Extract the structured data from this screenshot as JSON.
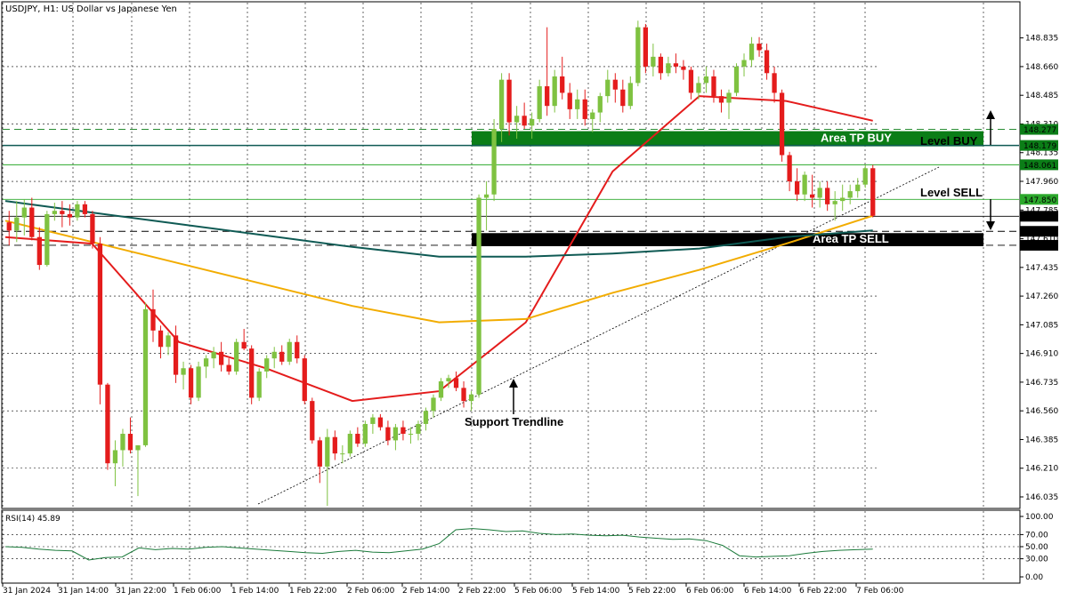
{
  "chart_data": {
    "type": "candlestick",
    "title": "USDJPY, H1:  US Dollar vs Japanese Yen",
    "y_ticks": [
      "148.835",
      "148.660",
      "148.485",
      "148.310",
      "148.135",
      "147.960",
      "147.785",
      "147.610",
      "147.435",
      "147.260",
      "147.085",
      "146.910",
      "146.735",
      "146.560",
      "146.385",
      "146.210",
      "146.035"
    ],
    "ylim": [
      145.97,
      149.05
    ],
    "x_ticks": [
      "31 Jan 2024",
      "31 Jan 14:00",
      "31 Jan 22:00",
      "1 Feb 06:00",
      "1 Feb 14:00",
      "1 Feb 22:00",
      "2 Feb 06:00",
      "2 Feb 14:00",
      "2 Feb 22:00",
      "5 Feb 06:00",
      "5 Feb 14:00",
      "5 Feb 22:00",
      "6 Feb 06:00",
      "6 Feb 14:00",
      "6 Feb 22:00",
      "7 Feb 06:00"
    ],
    "price_labels": [
      {
        "text": "148.277",
        "value": 148.277,
        "color": "#0b7d17"
      },
      {
        "text": "148.179",
        "value": 148.179,
        "color": "#0b7d17"
      },
      {
        "text": "148.061",
        "value": 148.061,
        "color": "#0b7d17"
      },
      {
        "text": "147.850",
        "value": 147.85,
        "color": "#2ca82c"
      },
      {
        "text": "147.747",
        "value": 147.747,
        "color": "#000000"
      },
      {
        "text": "147.655",
        "value": 147.655,
        "color": "#000000"
      },
      {
        "text": "147.570",
        "value": 147.57,
        "color": "#000000"
      }
    ],
    "zones": [
      {
        "label": "Area TP BUY",
        "top": 148.277,
        "bottom": 148.179,
        "color": "#0b7d17"
      },
      {
        "label": "Area TP SELL",
        "top": 147.655,
        "bottom": 147.57,
        "color": "#000000"
      }
    ],
    "levels": [
      {
        "label": "Level BUY",
        "value": 148.061
      },
      {
        "label": "Level SELL",
        "value": 147.747
      }
    ],
    "trendline_label": "Support Trendline",
    "candles": [
      [
        147.71,
        147.78,
        147.57,
        147.66
      ],
      [
        147.66,
        147.84,
        147.59,
        147.74
      ],
      [
        147.74,
        147.85,
        147.63,
        147.8
      ],
      [
        147.8,
        147.86,
        147.6,
        147.62
      ],
      [
        147.62,
        147.68,
        147.42,
        147.45
      ],
      [
        147.45,
        147.78,
        147.44,
        147.76
      ],
      [
        147.76,
        147.83,
        147.72,
        147.78
      ],
      [
        147.78,
        147.84,
        147.68,
        147.76
      ],
      [
        147.76,
        147.82,
        147.69,
        147.74
      ],
      [
        147.74,
        147.84,
        147.72,
        147.82
      ],
      [
        147.82,
        147.84,
        147.74,
        147.76
      ],
      [
        147.76,
        147.78,
        147.55,
        147.58
      ],
      [
        147.58,
        147.62,
        146.6,
        146.72
      ],
      [
        146.72,
        146.73,
        146.2,
        146.24
      ],
      [
        146.24,
        146.38,
        146.1,
        146.32
      ],
      [
        146.32,
        146.45,
        146.22,
        146.42
      ],
      [
        146.42,
        146.52,
        146.3,
        146.32
      ],
      [
        146.32,
        146.35,
        146.04,
        146.35
      ],
      [
        146.35,
        147.22,
        146.34,
        147.18
      ],
      [
        147.18,
        147.3,
        146.98,
        147.05
      ],
      [
        147.05,
        147.08,
        146.88,
        146.95
      ],
      [
        146.95,
        147.04,
        146.9,
        147.02
      ],
      [
        147.02,
        147.08,
        146.73,
        146.78
      ],
      [
        146.78,
        146.86,
        146.69,
        146.82
      ],
      [
        146.82,
        146.84,
        146.6,
        146.64
      ],
      [
        146.64,
        146.86,
        146.62,
        146.83
      ],
      [
        146.83,
        146.9,
        146.76,
        146.88
      ],
      [
        146.88,
        146.95,
        146.82,
        146.92
      ],
      [
        146.92,
        146.98,
        146.8,
        146.84
      ],
      [
        146.84,
        146.88,
        146.78,
        146.8
      ],
      [
        146.8,
        147.0,
        146.78,
        146.98
      ],
      [
        146.98,
        147.06,
        146.93,
        146.94
      ],
      [
        146.94,
        146.96,
        146.6,
        146.64
      ],
      [
        146.64,
        146.82,
        146.62,
        146.8
      ],
      [
        146.8,
        146.9,
        146.76,
        146.88
      ],
      [
        146.88,
        146.95,
        146.82,
        146.92
      ],
      [
        146.92,
        146.96,
        146.84,
        146.86
      ],
      [
        146.86,
        147.0,
        146.84,
        146.98
      ],
      [
        146.98,
        147.02,
        146.85,
        146.88
      ],
      [
        146.88,
        146.9,
        146.6,
        146.62
      ],
      [
        146.62,
        146.64,
        146.36,
        146.38
      ],
      [
        146.38,
        146.4,
        146.12,
        146.22
      ],
      [
        146.22,
        146.45,
        145.98,
        146.4
      ],
      [
        146.4,
        146.44,
        146.26,
        146.3
      ],
      [
        146.3,
        146.35,
        146.24,
        146.3
      ],
      [
        146.3,
        146.44,
        146.28,
        146.42
      ],
      [
        146.42,
        146.46,
        146.34,
        146.36
      ],
      [
        146.36,
        146.5,
        146.34,
        146.48
      ],
      [
        146.48,
        146.54,
        146.42,
        146.52
      ],
      [
        146.52,
        146.54,
        146.44,
        146.46
      ],
      [
        146.46,
        146.5,
        146.35,
        146.38
      ],
      [
        146.38,
        146.48,
        146.32,
        146.46
      ],
      [
        146.46,
        146.5,
        146.38,
        146.42
      ],
      [
        146.42,
        146.46,
        146.36,
        146.42
      ],
      [
        146.42,
        146.5,
        146.38,
        146.48
      ],
      [
        146.48,
        146.58,
        146.44,
        146.56
      ],
      [
        146.56,
        146.66,
        146.52,
        146.64
      ],
      [
        146.64,
        146.76,
        146.62,
        146.74
      ],
      [
        146.74,
        146.78,
        146.7,
        146.76
      ],
      [
        146.76,
        146.8,
        146.68,
        146.7
      ],
      [
        146.7,
        146.74,
        146.58,
        146.62
      ],
      [
        146.62,
        146.68,
        146.56,
        146.66
      ],
      [
        146.66,
        147.88,
        146.64,
        147.86
      ],
      [
        147.86,
        147.96,
        147.66,
        147.88
      ],
      [
        147.88,
        148.34,
        147.84,
        148.28
      ],
      [
        148.28,
        148.62,
        148.2,
        148.58
      ],
      [
        148.58,
        148.62,
        148.24,
        148.32
      ],
      [
        148.32,
        148.42,
        148.22,
        148.36
      ],
      [
        148.36,
        148.44,
        148.28,
        148.3
      ],
      [
        148.3,
        148.38,
        148.22,
        148.34
      ],
      [
        148.34,
        148.58,
        148.32,
        148.54
      ],
      [
        148.54,
        148.9,
        148.36,
        148.42
      ],
      [
        148.42,
        148.64,
        148.38,
        148.6
      ],
      [
        148.6,
        148.72,
        148.46,
        148.5
      ],
      [
        148.5,
        148.56,
        148.34,
        148.4
      ],
      [
        148.4,
        148.52,
        148.34,
        148.46
      ],
      [
        148.46,
        148.52,
        148.3,
        148.34
      ],
      [
        148.34,
        148.4,
        148.26,
        148.38
      ],
      [
        148.38,
        148.5,
        148.32,
        148.48
      ],
      [
        148.48,
        148.64,
        148.44,
        148.58
      ],
      [
        148.58,
        148.62,
        148.44,
        148.52
      ],
      [
        148.52,
        148.58,
        148.38,
        148.42
      ],
      [
        148.42,
        148.6,
        148.4,
        148.56
      ],
      [
        148.56,
        148.94,
        148.54,
        148.9
      ],
      [
        148.9,
        148.92,
        148.62,
        148.66
      ],
      [
        148.66,
        148.8,
        148.6,
        148.72
      ],
      [
        148.72,
        148.74,
        148.58,
        148.62
      ],
      [
        148.62,
        148.72,
        148.6,
        148.68
      ],
      [
        148.68,
        148.74,
        148.62,
        148.66
      ],
      [
        148.66,
        148.7,
        148.58,
        148.64
      ],
      [
        148.64,
        148.66,
        148.46,
        148.5
      ],
      [
        148.5,
        148.6,
        148.46,
        148.56
      ],
      [
        148.56,
        148.66,
        148.5,
        148.6
      ],
      [
        148.6,
        148.64,
        148.44,
        148.48
      ],
      [
        148.48,
        148.52,
        148.38,
        148.44
      ],
      [
        148.44,
        148.52,
        148.34,
        148.5
      ],
      [
        148.5,
        148.68,
        148.48,
        148.66
      ],
      [
        148.66,
        148.74,
        148.6,
        148.7
      ],
      [
        148.7,
        148.84,
        148.66,
        148.8
      ],
      [
        148.8,
        148.84,
        148.72,
        148.76
      ],
      [
        148.76,
        148.8,
        148.58,
        148.62
      ],
      [
        148.62,
        148.66,
        148.44,
        148.5
      ],
      [
        148.5,
        148.52,
        148.08,
        148.12
      ],
      [
        148.12,
        148.14,
        147.9,
        147.96
      ],
      [
        147.96,
        148.04,
        147.84,
        147.88
      ],
      [
        147.88,
        148.02,
        147.84,
        148.0
      ],
      [
        147.88,
        148.0,
        147.8,
        147.86
      ],
      [
        147.86,
        147.96,
        147.8,
        147.92
      ],
      [
        147.92,
        147.96,
        147.78,
        147.82
      ],
      [
        147.82,
        147.9,
        147.72,
        147.84
      ],
      [
        147.84,
        147.94,
        147.78,
        147.86
      ],
      [
        147.86,
        147.94,
        147.82,
        147.9
      ],
      [
        147.9,
        147.98,
        147.86,
        147.94
      ],
      [
        147.94,
        148.06,
        147.92,
        148.04
      ],
      [
        148.04,
        148.06,
        147.74,
        147.75
      ]
    ],
    "moving_averages": [
      {
        "color": "#e41c1c",
        "values": [
          147.62,
          147.58,
          146.98,
          146.82,
          146.62,
          146.68,
          147.1,
          148.02,
          148.48,
          148.45,
          148.33
        ]
      },
      {
        "color": "#f2ac00",
        "values": [
          147.72,
          147.59,
          147.46,
          147.33,
          147.2,
          147.1,
          147.12,
          147.28,
          147.42,
          147.58,
          147.75
        ]
      },
      {
        "color": "#0f5a54",
        "values": [
          147.84,
          147.77,
          147.7,
          147.63,
          147.56,
          147.5,
          147.5,
          147.52,
          147.55,
          147.62,
          147.66
        ]
      }
    ],
    "rsi": {
      "label": "RSI(14) 45.89",
      "ticks": [
        "100.00",
        "70.00",
        "50.00",
        "30.00",
        "0.00"
      ],
      "values": [
        50,
        49,
        46,
        44,
        43,
        28,
        32,
        33,
        48,
        45,
        47,
        46,
        49,
        50,
        48,
        46,
        44,
        42,
        40,
        39,
        42,
        44,
        41,
        40,
        43,
        46,
        55,
        78,
        80,
        78,
        75,
        76,
        72,
        70,
        71,
        69,
        68,
        69,
        66,
        64,
        62,
        63,
        60,
        52,
        35,
        33,
        34,
        35,
        39,
        42,
        44,
        45,
        46
      ]
    }
  }
}
